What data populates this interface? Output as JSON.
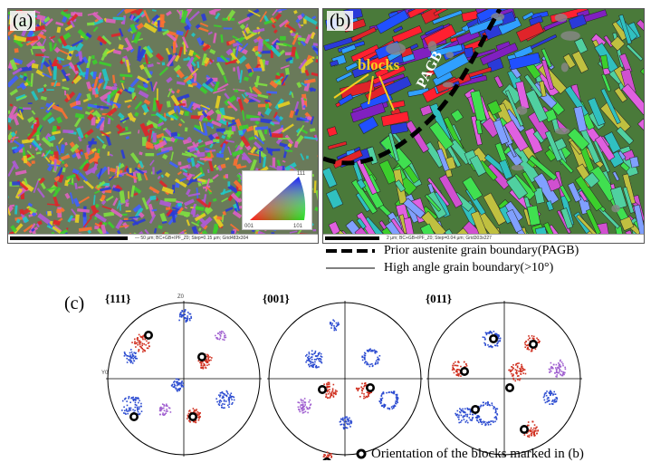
{
  "panel_a": {
    "label": "(a)",
    "scale_text": "— 50 µm; BC+GB+IPF_Z0; Step=0.15 µm; Grid483x304",
    "key_labels": [
      "001",
      "101",
      "111"
    ]
  },
  "panel_b": {
    "label": "(b)",
    "annotation_blocks": "blocks",
    "annotation_pagb": "PAGB",
    "scale_text": "2 µm; BC+GB+IPF_Z0; Step=0.04 µm; Grid303x227"
  },
  "legend": {
    "pagb": "Prior austenite grain boundary(PAGB)",
    "hagb": "High angle grain boundary(>10°)"
  },
  "panel_c": {
    "label": "(c)",
    "pole_figures": [
      {
        "title": "{111}",
        "top_label": "Z0",
        "left_label": "Y0"
      },
      {
        "title": "{001}",
        "top_label": "",
        "left_label": ""
      },
      {
        "title": "{011}",
        "top_label": "",
        "left_label": ""
      }
    ],
    "marker_note": "Orientation of the blocks marked in (b)"
  },
  "colors": {
    "ipf_red": "#e0242a",
    "ipf_green": "#3ccf2c",
    "ipf_blue": "#2a3ad8",
    "ipf_purple": "#b05ad8",
    "pf_blue": "#2a4ad0",
    "pf_red": "#d03020",
    "pf_violet": "#a060d0"
  }
}
